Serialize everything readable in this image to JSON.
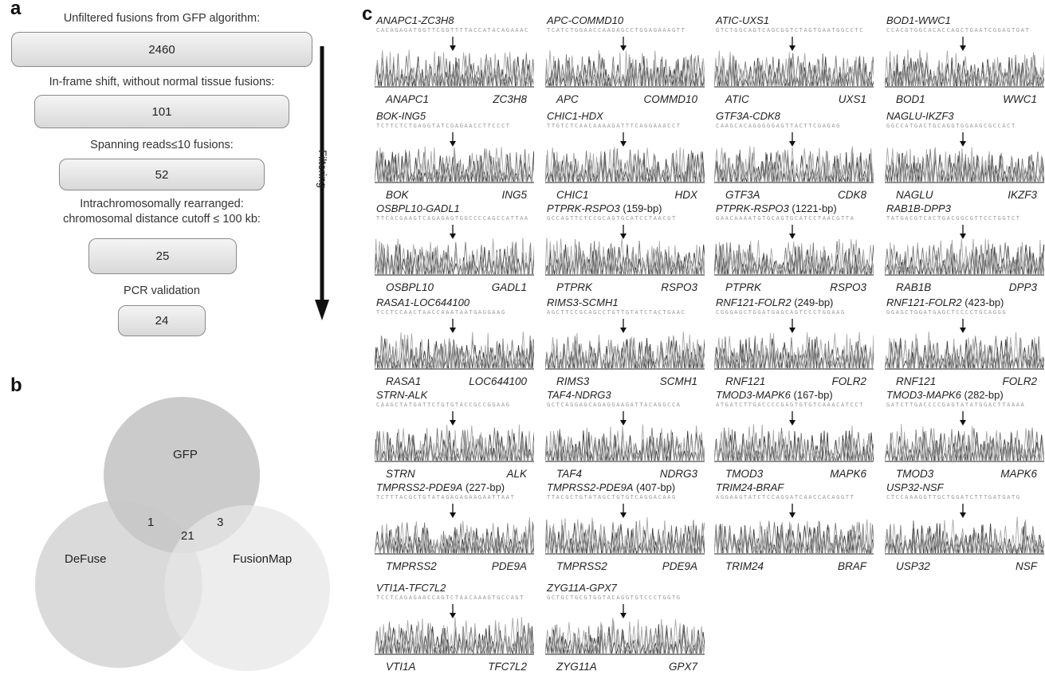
{
  "panels": {
    "a": "a",
    "b": "b",
    "c": "c"
  },
  "flowchart": {
    "steps": [
      {
        "label": "Unfiltered fusions from GFP algorithm:",
        "value": "2460"
      },
      {
        "label": "In-frame shift, without normal tissue fusions:",
        "value": "101"
      },
      {
        "label": "Spanning reads≤10 fusions:",
        "value": "52"
      },
      {
        "label": "Intrachromosomally rearranged:\nchromosomal distance cutoff ≤ 100 kb:",
        "value": "25"
      },
      {
        "label": "PCR validation",
        "value": "24"
      }
    ],
    "arrow_label": "Filtering"
  },
  "venn": {
    "sets": [
      "GFP",
      "DeFuse",
      "FusionMap"
    ],
    "counts": {
      "gfp_defuse": "1",
      "gfp_fusionmap": "3",
      "all_three": "21"
    },
    "colors": {
      "gfp": "#bdbdbd",
      "defuse": "#c9c9c9",
      "fusionmap": "#e6e6e6"
    }
  },
  "fusions": [
    {
      "title": "ANAPC1-ZC3H8",
      "bp": "",
      "seq": "CACAGAGATGGTTCGGTTTTACCATACAGAAAC",
      "left": "ANAPC1",
      "right": "ZC3H8"
    },
    {
      "title": "APC-COMMD10",
      "bp": "",
      "seq": "TCATCTGGAACCAAGAGCCTGGAGAAAGTT",
      "left": "APC",
      "right": "COMMD10"
    },
    {
      "title": "ATIC-UXS1",
      "bp": "",
      "seq": "GTCTGGCAGTCAGCGGTCTAGTGAATGGCCTC",
      "left": "ATIC",
      "right": "UXS1"
    },
    {
      "title": "BOD1-WWC1",
      "bp": "",
      "seq": "CCACGTGGCACACCAGCTGAATCGGAGTGAT",
      "left": "BOD1",
      "right": "WWC1"
    },
    {
      "title": "BOK-ING5",
      "bp": "",
      "seq": "TCTTCTCTGAGGTATCGAGAACCTTCCCT",
      "left": "BOK",
      "right": "ING5"
    },
    {
      "title": "CHIC1-HDX",
      "bp": "",
      "seq": "TTGTCTCAACAAAAGATTTCAGGAAACCT",
      "left": "CHIC1",
      "right": "HDX"
    },
    {
      "title": "GTF3A-CDK8",
      "bp": "",
      "seq": "CAAGCACAGGGGGAGTTACTTCGAGAG",
      "left": "GTF3A",
      "right": "CDK8"
    },
    {
      "title": "NAGLU-IKZF3",
      "bp": "",
      "seq": "GGCCATGACTGCAGGTGGAAGCGCCACT",
      "left": "NAGLU",
      "right": "IKZF3"
    },
    {
      "title": "OSBPL10-GADL1",
      "bp": "",
      "seq": "TTCACGAAGTCAGAGAGTGGCCCCAGCCATTAA",
      "left": "OSBPL10",
      "right": "GADL1"
    },
    {
      "title": "PTPRK-RSPO3",
      "bp": " (159-bp)",
      "seq": "GCCAGTTCTCCGCAGTGCATCCTAACGT",
      "left": "PTPRK",
      "right": "RSPO3"
    },
    {
      "title": "PTPRK-RSPO3",
      "bp": " (1221-bp)",
      "seq": "GAACAAAATGTGCAGTGCATCCTAACGTTA",
      "left": "PTPRK",
      "right": "RSPO3"
    },
    {
      "title": "RAB1B-DPP3",
      "bp": "",
      "seq": "TATGACGTCACTGACGGCGTTCCTGGTCT",
      "left": "RAB1B",
      "right": "DPP3"
    },
    {
      "title": "RASA1-LOC644100",
      "bp": "",
      "seq": "TCCTCCAACTAACCAAATAATGAGGAAG",
      "left": "RASA1",
      "right": "LOC644100"
    },
    {
      "title": "RIMS3-SCMH1",
      "bp": "",
      "seq": "AGCTTCCGCAGCCTGTTGTATCTACTGAAC",
      "left": "RIMS3",
      "right": "SCMH1"
    },
    {
      "title": "RNF121-FOLR2",
      "bp": " (249-bp)",
      "seq": "CGGGAGCTGGATGAGCAGTCCCTGGAAG",
      "left": "RNF121",
      "right": "FOLR2"
    },
    {
      "title": "RNF121-FOLR2",
      "bp": " (423-bp)",
      "seq": "GGAGCTGGATGAGCTCCCCTGCAGGG",
      "left": "RNF121",
      "right": "FOLR2"
    },
    {
      "title": "STRN-ALK",
      "bp": "",
      "seq": "CAAGCTATGATTCTGTGTACCGCCGGAAG",
      "left": "STRN",
      "right": "ALK"
    },
    {
      "title": "TAF4-NDRG3",
      "bp": "",
      "seq": "GCTCAGGAGCAGAGGAAGATTACAGGCCA",
      "left": "TAF4",
      "right": "NDRG3"
    },
    {
      "title": "TMOD3-MAPK6",
      "bp": " (167-bp)",
      "seq": "ATGATCTTGACCCCGAGTGTGTCAAACATCCT",
      "left": "TMOD3",
      "right": "MAPK6"
    },
    {
      "title": "TMOD3-MAPK6",
      "bp": " (282-bp)",
      "seq": "GATCTTGACCCCGAGTATATGGACTTAAAA",
      "left": "TMOD3",
      "right": "MAPK6"
    },
    {
      "title": "TMPRSS2-PDE9A",
      "bp": " (227-bp)",
      "seq": "TCTTTACGCTGTATAGAGAGAAGAATTAAT",
      "left": "TMPRSS2",
      "right": "PDE9A"
    },
    {
      "title": "TMPRSS2-PDE9A",
      "bp": " (407-bp)",
      "seq": "TTACGCTGTATAGCTGTGTCAGGACAAG",
      "left": "TMPRSS2",
      "right": "PDE9A"
    },
    {
      "title": "TRIM24-BRAF",
      "bp": "",
      "seq": "AGGAAGTATCTCCAGGATCAACCACAGGTT",
      "left": "TRIM24",
      "right": "BRAF"
    },
    {
      "title": "USP32-NSF",
      "bp": "",
      "seq": "CTCCAAAGGTTGCTGGATCTTTGATGATG",
      "left": "USP32",
      "right": "NSF"
    },
    {
      "title": "VTI1A-TFC7L2",
      "bp": "",
      "seq": "TCCTCAGAGAACCAGTCTAACAAAGTGCCAGT",
      "left": "VTI1A",
      "right": "TFC7L2"
    },
    {
      "title": "ZYG11A-GPX7",
      "bp": "",
      "seq": "GCTGCTGCGTGGTACAGGTGTCCCTGGTG",
      "left": "ZYG11A",
      "right": "GPX7"
    }
  ]
}
